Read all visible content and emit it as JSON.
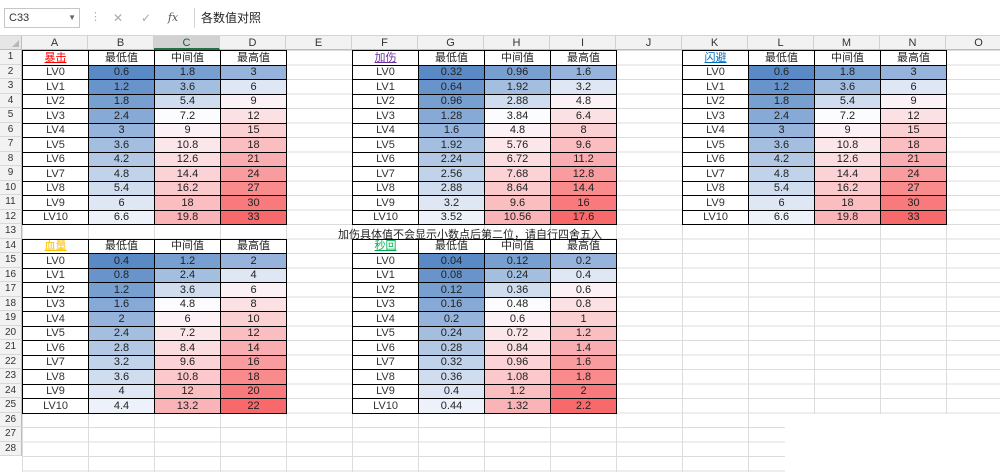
{
  "window": {
    "name_box": "C33",
    "formula": "各数值对照"
  },
  "columns": [
    "A",
    "B",
    "C",
    "D",
    "E",
    "F",
    "G",
    "H",
    "I",
    "J",
    "K",
    "L",
    "M",
    "N",
    "O"
  ],
  "selected_column": "C",
  "rows": [
    "1",
    "2",
    "3",
    "4",
    "5",
    "6",
    "7",
    "8",
    "9",
    "10",
    "11",
    "12",
    "13",
    "14",
    "15",
    "16",
    "17",
    "18",
    "19",
    "20",
    "21",
    "22",
    "23",
    "24",
    "25",
    "26",
    "27",
    "28"
  ],
  "header_labels": {
    "min": "最低值",
    "mid": "中间值",
    "max": "最高值"
  },
  "level_labels": [
    "LV0",
    "LV1",
    "LV2",
    "LV3",
    "LV4",
    "LV5",
    "LV6",
    "LV7",
    "LV8",
    "LV9",
    "LV10"
  ],
  "colors": {
    "blue": "#5a8ac6",
    "white": "#fcfcff",
    "red": "#f8696b"
  },
  "note": "加伤具体值不会显示小数点后第二位，请自行四舍五入",
  "tables": [
    {
      "title": "暴击",
      "title_color": "#ff0000",
      "col": 0,
      "row": 0,
      "min": [
        "0.6",
        "1.2",
        "1.8",
        "2.4",
        "3",
        "3.6",
        "4.2",
        "4.8",
        "5.4",
        "6",
        "6.6"
      ],
      "mid": [
        "1.8",
        "3.6",
        "5.4",
        "7.2",
        "9",
        "10.8",
        "12.6",
        "14.4",
        "16.2",
        "18",
        "19.8"
      ],
      "max": [
        "3",
        "6",
        "9",
        "12",
        "15",
        "18",
        "21",
        "24",
        "27",
        "30",
        "33"
      ]
    },
    {
      "title": "加伤",
      "title_color": "#7030a0",
      "col": 5,
      "row": 0,
      "min": [
        "0.32",
        "0.64",
        "0.96",
        "1.28",
        "1.6",
        "1.92",
        "2.24",
        "2.56",
        "2.88",
        "3.2",
        "3.52"
      ],
      "mid": [
        "0.96",
        "1.92",
        "2.88",
        "3.84",
        "4.8",
        "5.76",
        "6.72",
        "7.68",
        "8.64",
        "9.6",
        "10.56"
      ],
      "max": [
        "1.6",
        "3.2",
        "4.8",
        "6.4",
        "8",
        "9.6",
        "11.2",
        "12.8",
        "14.4",
        "16",
        "17.6"
      ]
    },
    {
      "title": "闪避",
      "title_color": "#0070c0",
      "col": 10,
      "row": 0,
      "min": [
        "0.6",
        "1.2",
        "1.8",
        "2.4",
        "3",
        "3.6",
        "4.2",
        "4.8",
        "5.4",
        "6",
        "6.6"
      ],
      "mid": [
        "1.8",
        "3.6",
        "5.4",
        "7.2",
        "9",
        "10.8",
        "12.6",
        "14.4",
        "16.2",
        "18",
        "19.8"
      ],
      "max": [
        "3",
        "6",
        "9",
        "12",
        "15",
        "18",
        "21",
        "24",
        "27",
        "30",
        "33"
      ]
    },
    {
      "title": "血量",
      "title_color": "#ffc000",
      "col": 0,
      "row": 13,
      "min": [
        "0.4",
        "0.8",
        "1.2",
        "1.6",
        "2",
        "2.4",
        "2.8",
        "3.2",
        "3.6",
        "4",
        "4.4"
      ],
      "mid": [
        "1.2",
        "2.4",
        "3.6",
        "4.8",
        "6",
        "7.2",
        "8.4",
        "9.6",
        "10.8",
        "12",
        "13.2"
      ],
      "max": [
        "2",
        "4",
        "6",
        "8",
        "10",
        "12",
        "14",
        "16",
        "18",
        "20",
        "22"
      ]
    },
    {
      "title": "秒回",
      "title_color": "#00b050",
      "col": 5,
      "row": 13,
      "min": [
        "0.04",
        "0.08",
        "0.12",
        "0.16",
        "0.2",
        "0.24",
        "0.28",
        "0.32",
        "0.36",
        "0.4",
        "0.44"
      ],
      "mid": [
        "0.12",
        "0.24",
        "0.36",
        "0.48",
        "0.6",
        "0.72",
        "0.84",
        "0.96",
        "1.08",
        "1.2",
        "1.32"
      ],
      "max": [
        "0.2",
        "0.4",
        "0.6",
        "0.8",
        "1",
        "1.2",
        "1.4",
        "1.6",
        "1.8",
        "2",
        "2.2"
      ]
    }
  ]
}
